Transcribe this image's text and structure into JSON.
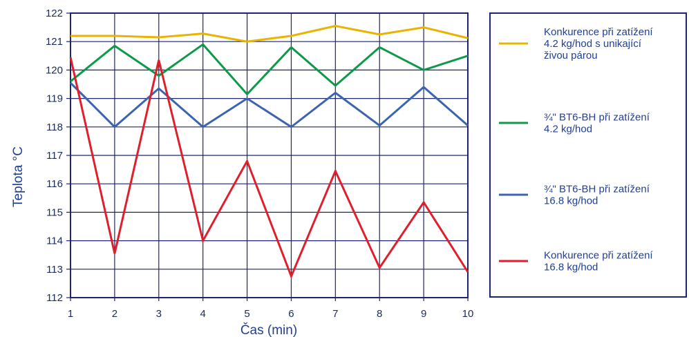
{
  "chart_data": {
    "type": "line",
    "xlabel": "Čas (min)",
    "ylabel": "Teplota °C",
    "x": [
      1,
      2,
      3,
      4,
      5,
      6,
      7,
      8,
      9,
      10
    ],
    "xlim": [
      1,
      10
    ],
    "ylim": [
      112,
      122
    ],
    "yticks": [
      112,
      113,
      114,
      115,
      116,
      117,
      118,
      119,
      120,
      121,
      122
    ],
    "grid": true,
    "legend_position": "right",
    "series": [
      {
        "name_lines": [
          "Konkurence při zatížení",
          "4.2 kg/hod s unikající",
          "živou párou"
        ],
        "color": "#e8b400",
        "values": [
          121.2,
          121.2,
          121.15,
          121.28,
          121.0,
          121.2,
          121.55,
          121.25,
          121.5,
          121.12
        ]
      },
      {
        "name_lines": [
          "¾\" BT6-BH při zatížení",
          "4.2 kg/hod"
        ],
        "color": "#0c9a48",
        "values": [
          119.6,
          120.85,
          119.8,
          120.9,
          119.15,
          120.8,
          119.45,
          120.8,
          120.0,
          120.5
        ]
      },
      {
        "name_lines": [
          "¾\" BT6-BH při zatížení",
          "16.8 kg/hod"
        ],
        "color": "#3a64b0",
        "values": [
          119.55,
          118.0,
          119.35,
          118.0,
          119.0,
          118.0,
          119.2,
          118.05,
          119.4,
          118.05
        ]
      },
      {
        "name_lines": [
          "Konkurence při zatížení",
          "16.8 kg/hod"
        ],
        "color": "#e01e2c",
        "values": [
          120.45,
          113.55,
          120.35,
          114.0,
          116.8,
          112.75,
          116.45,
          113.05,
          115.35,
          112.9
        ]
      }
    ]
  }
}
